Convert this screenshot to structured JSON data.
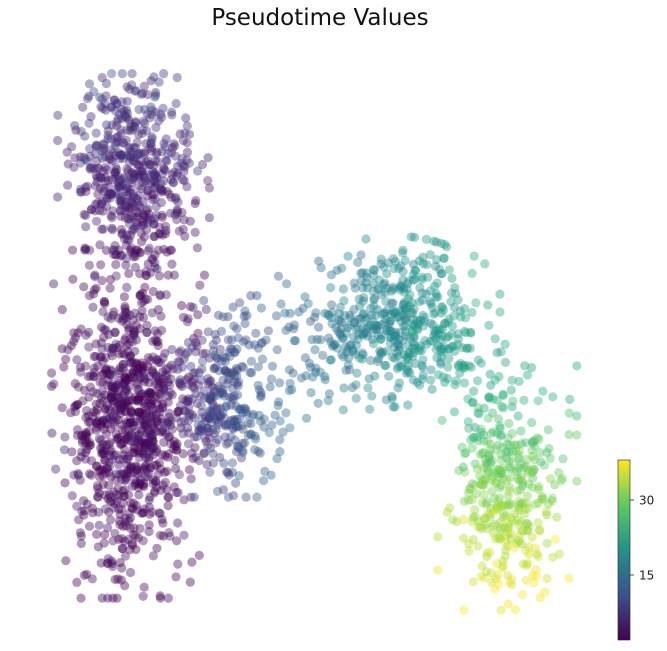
{
  "chart_data": {
    "type": "scatter",
    "title": "Pseudotime Values",
    "xlabel": "",
    "ylabel": "",
    "axes_visible": false,
    "marker": "filled circle, semi-transparent, no edge",
    "colormap": "viridis",
    "color_value_range": [
      2,
      38
    ],
    "colorbar": {
      "ticks": [
        15,
        30
      ],
      "tick_labels": [
        "15",
        "30"
      ],
      "placement": "lower-right",
      "colors": [
        "#440154",
        "#3b528b",
        "#21918c",
        "#5ec962",
        "#fde725"
      ]
    },
    "clusters": [
      {
        "region": "left vertical arm (top)",
        "x_range": [
          0.06,
          0.3
        ],
        "y_range": [
          0.05,
          0.38
        ],
        "pseudotime_range": [
          4,
          9
        ],
        "approx_points": 520
      },
      {
        "region": "left vertical arm (dense base)",
        "x_range": [
          0.05,
          0.3
        ],
        "y_range": [
          0.38,
          0.95
        ],
        "pseudotime_range": [
          1,
          5
        ],
        "approx_points": 900
      },
      {
        "region": "horizontal bridge",
        "x_range": [
          0.22,
          0.45
        ],
        "y_range": [
          0.45,
          0.78
        ],
        "pseudotime_range": [
          6,
          14
        ],
        "approx_points": 330
      },
      {
        "region": "upper arch",
        "x_range": [
          0.45,
          0.82
        ],
        "y_range": [
          0.4,
          0.68
        ],
        "pseudotime_range": [
          14,
          24
        ],
        "approx_points": 520
      },
      {
        "region": "right descending branch",
        "x_range": [
          0.72,
          0.94
        ],
        "y_range": [
          0.58,
          0.98
        ],
        "pseudotime_range": [
          24,
          38
        ],
        "approx_points": 360
      }
    ]
  }
}
